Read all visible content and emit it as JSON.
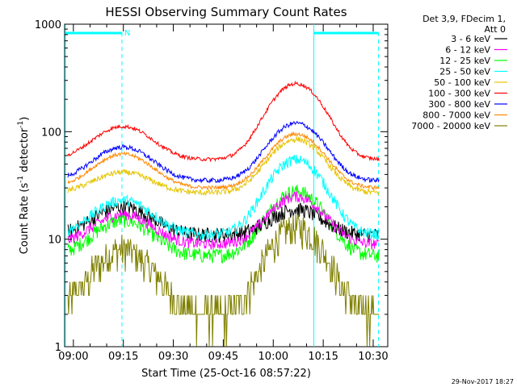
{
  "chart_data": {
    "type": "line",
    "title": "HESSI Observing Summary Count Rates",
    "xlabel": "Start Time (25-Oct-16 08:57:22)",
    "ylabel_main": "Count Rate (s",
    "ylabel_exp1": "-1",
    "ylabel_mid": " detector",
    "ylabel_exp2": "-1",
    "ylabel_end": ")",
    "y_scale": "log",
    "ylim": [
      1,
      1000
    ],
    "xlim_minutes": [
      0,
      97
    ],
    "x_ticks": [
      {
        "label": "09:00",
        "minutes": 2.63
      },
      {
        "label": "09:15",
        "minutes": 17.63
      },
      {
        "label": "09:30",
        "minutes": 32.63
      },
      {
        "label": "09:45",
        "minutes": 47.63
      },
      {
        "label": "10:00",
        "minutes": 62.63
      },
      {
        "label": "10:15",
        "minutes": 77.63
      },
      {
        "label": "10:30",
        "minutes": 92.63
      }
    ],
    "y_ticks": [
      {
        "label": "1",
        "value": 1
      },
      {
        "label": "10",
        "value": 10
      },
      {
        "label": "100",
        "value": 100
      },
      {
        "label": "1000",
        "value": 1000
      }
    ],
    "legend_header": [
      "Det 3,9, FDecim 1,",
      "Att 0"
    ],
    "legend_position": "right",
    "series": [
      {
        "name": "3 - 6 keV",
        "color": "#000000",
        "base": 11,
        "p1": 20,
        "p2": 19,
        "noise": 0.16
      },
      {
        "name": "6 - 12 keV",
        "color": "#ff00ff",
        "base": 9,
        "p1": 17,
        "p2": 25,
        "noise": 0.12
      },
      {
        "name": "12 - 25 keV",
        "color": "#00ff00",
        "base": 7,
        "p1": 15,
        "p2": 28,
        "noise": 0.16
      },
      {
        "name": "25 - 50 keV",
        "color": "#00ffff",
        "base": 11,
        "p1": 23,
        "p2": 55,
        "noise": 0.12
      },
      {
        "name": "50 - 100 keV",
        "color": "#e5c500",
        "base": 27,
        "p1": 42,
        "p2": 85,
        "noise": 0.06
      },
      {
        "name": "100 - 300 keV",
        "color": "#ff0000",
        "base": 55,
        "p1": 112,
        "p2": 280,
        "noise": 0.04
      },
      {
        "name": "300 - 800 keV",
        "color": "#0000ff",
        "base": 35,
        "p1": 72,
        "p2": 120,
        "noise": 0.05
      },
      {
        "name": "800 - 7000 keV",
        "color": "#ff8800",
        "base": 30,
        "p1": 62,
        "p2": 95,
        "noise": 0.04
      },
      {
        "name": "7000 - 20000 keV",
        "color": "#808000",
        "base": 2,
        "p1": 8,
        "p2": 13,
        "noise": 0.35
      }
    ],
    "annotations": {
      "flag_label": "N",
      "flag_color": "#00ffff",
      "dashed_lines_minutes": [
        17.2,
        94.2
      ],
      "solid_lines_minutes": [
        0.2,
        74.8
      ],
      "flag_segments_minutes": [
        [
          0.2,
          17.2
        ],
        [
          74.8,
          94.2
        ]
      ]
    },
    "grid": false
  },
  "footer": {
    "timestamp": "29-Nov-2017 18:27"
  }
}
